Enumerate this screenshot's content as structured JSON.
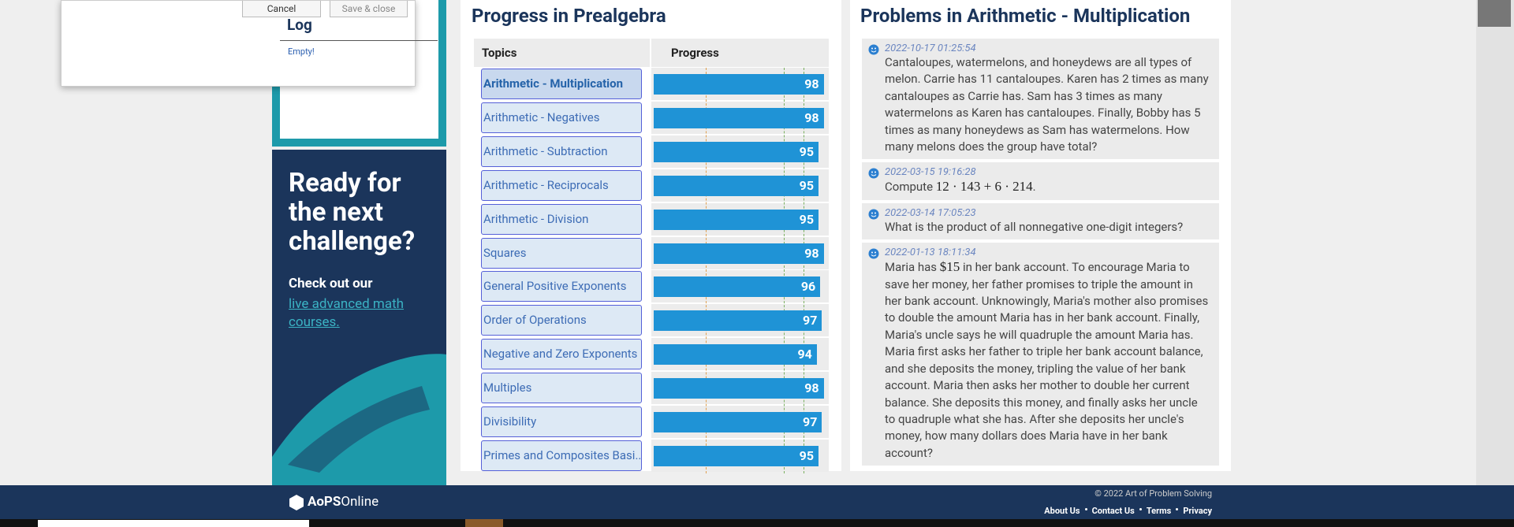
{
  "dialog": {
    "buttons": [
      "Cancel",
      "Save & close"
    ],
    "heading": "Log",
    "empty": "Empty!"
  },
  "promo": {
    "heading": "Ready for the next challenge?",
    "text": "Check out our",
    "link": "live advanced math courses."
  },
  "progress": {
    "title": "Progress in Prealgebra",
    "columns": [
      "Topics",
      "Progress"
    ],
    "rows": [
      {
        "topic": "Arithmetic - Multiplication",
        "value": 98
      },
      {
        "topic": "Arithmetic - Negatives",
        "value": 98
      },
      {
        "topic": "Arithmetic - Subtraction",
        "value": 95
      },
      {
        "topic": "Arithmetic - Reciprocals",
        "value": 95
      },
      {
        "topic": "Arithmetic - Division",
        "value": 95
      },
      {
        "topic": "Squares",
        "value": 98
      },
      {
        "topic": "General Positive Exponents",
        "value": 96
      },
      {
        "topic": "Order of Operations",
        "value": 97
      },
      {
        "topic": "Negative and Zero Exponents",
        "value": 94
      },
      {
        "topic": "Multiples",
        "value": 98
      },
      {
        "topic": "Divisibility",
        "value": 97
      },
      {
        "topic": "Primes and Composites Basi...",
        "value": 95
      }
    ]
  },
  "problems": {
    "title": "Problems in Arithmetic - Multiplication",
    "items": [
      {
        "timestamp": "2022-10-17 01:25:54",
        "text": [
          "Cantaloupes, watermelons, and honeydews are all types of melon. Carrie has 11 cantaloupes. Karen has 2 times as many cantaloupes as Carrie has. Sam has 3 times as many watermelons as Karen has cantaloupes. Finally, Bobby has 5 times as many honeydews as Sam has watermelons. How many melons does the group have total?"
        ]
      },
      {
        "timestamp": "2022-03-15 19:16:28",
        "text": [
          "Compute ",
          "12 · 143 + 6 · 214",
          "."
        ]
      },
      {
        "timestamp": "2022-03-14 17:05:23",
        "text": [
          "What is the product of all nonnegative one-digit integers?"
        ]
      },
      {
        "timestamp": "2022-01-13 18:11:34",
        "text": [
          "Maria has ",
          "$15",
          " in her bank account. To encourage Maria to save her money, her father promises to triple the amount in her bank account. Unknowingly, Maria's mother also promises to double the amount Maria has in her bank account. Finally, Maria's uncle says he will quadruple the amount Maria has. Maria first asks her father to triple her bank account balance, and she deposits the money, tripling the value of her bank account. Maria then asks her mother to double her current balance. She deposits this money, and finally asks her uncle to quadruple what she has. After she deposits her uncle's money, how many dollars does Maria have in her bank account?"
        ]
      }
    ]
  },
  "footer": {
    "logo": [
      "AoPS",
      "Online"
    ],
    "copyright": "© 2022 Art of Problem Solving",
    "links": [
      "About Us",
      "Contact Us",
      "Terms",
      "Privacy"
    ]
  }
}
